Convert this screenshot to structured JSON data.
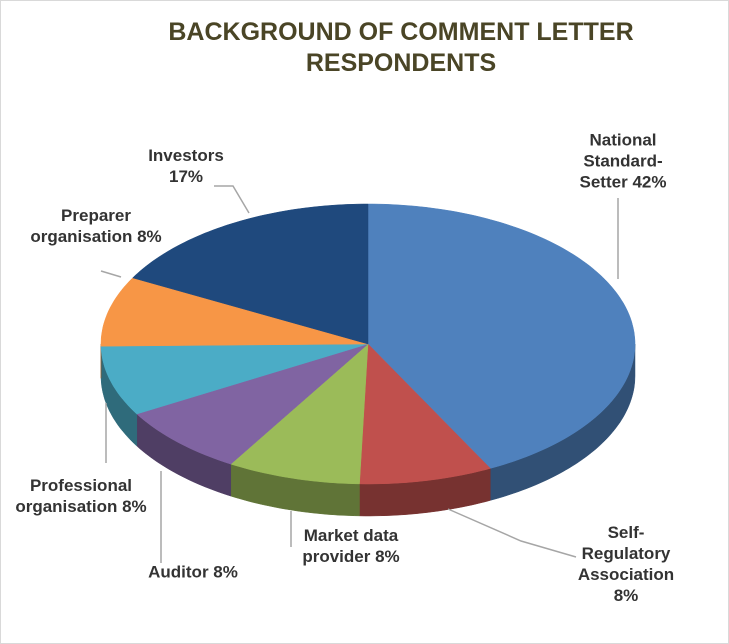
{
  "chart_data": {
    "type": "pie3d",
    "title": "BACKGROUND OF COMMENT LETTER RESPONDENTS",
    "categories": [
      "National Standard-Setter",
      "Self-Regulatory Association",
      "Market data provider",
      "Auditor",
      "Professional organisation",
      "Preparer organisation",
      "Investors"
    ],
    "values": [
      42,
      8,
      8,
      8,
      8,
      8,
      17
    ],
    "value_labels": [
      "42%",
      "8%",
      "8%",
      "8%",
      "8%",
      "8%",
      "17%"
    ],
    "colors": [
      "#4f81bd",
      "#c0504d",
      "#9bbb59",
      "#8064a2",
      "#4bacc6",
      "#f79646",
      "#1f497d"
    ]
  }
}
